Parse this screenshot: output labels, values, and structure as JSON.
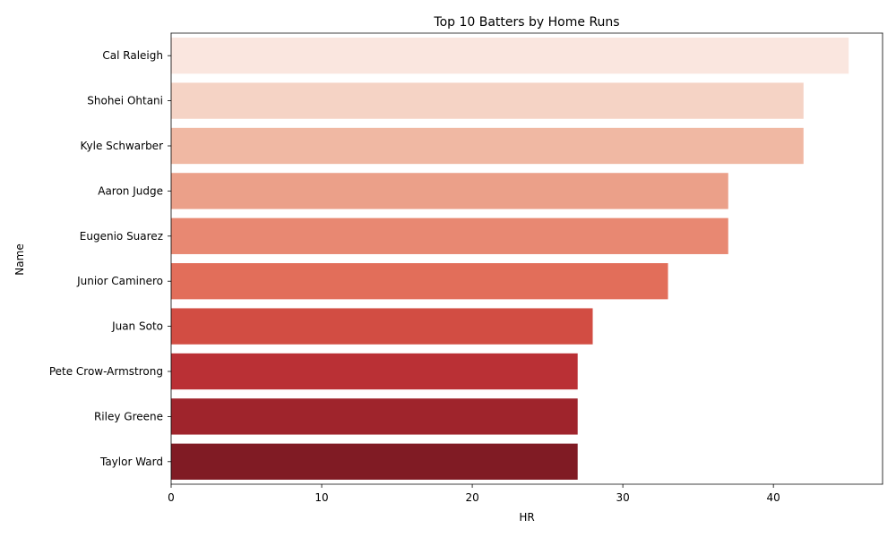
{
  "chart_data": {
    "type": "bar",
    "orientation": "horizontal",
    "title": "Top 10 Batters by Home Runs",
    "xlabel": "HR",
    "ylabel": "Name",
    "xlim": [
      0,
      47.25
    ],
    "xticks": [
      0,
      10,
      20,
      30,
      40
    ],
    "grid": false,
    "categories": [
      "Cal Raleigh",
      "Shohei Ohtani",
      "Kyle Schwarber",
      "Aaron Judge",
      "Eugenio Suarez",
      "Junior Caminero",
      "Juan Soto",
      "Pete Crow-Armstrong",
      "Riley Greene",
      "Taylor Ward"
    ],
    "values": [
      45,
      42,
      42,
      37,
      37,
      33,
      28,
      27,
      27,
      27
    ],
    "colors": [
      "#fae6df",
      "#f5d3c5",
      "#f0b8a3",
      "#eba089",
      "#e88872",
      "#e26e5a",
      "#d24d43",
      "#ba3035",
      "#9f242c",
      "#801b24"
    ]
  }
}
